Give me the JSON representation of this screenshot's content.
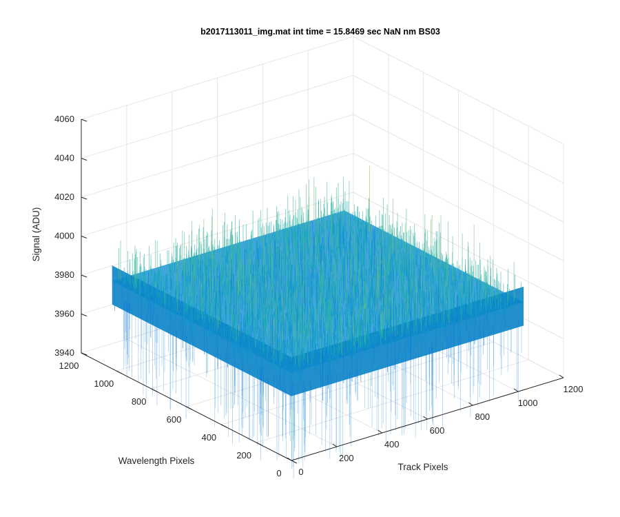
{
  "chart_data": {
    "type": "surface",
    "title": "b2017113011_img.mat int time = 15.8469 sec  NaN nm BS03",
    "xlabel": "Track Pixels",
    "ylabel": "Wavelength Pixels",
    "zlabel": "Signal (ADU)",
    "xlim": [
      0,
      1200
    ],
    "ylim": [
      0,
      1200
    ],
    "zlim": [
      3940,
      4060
    ],
    "x_ticks": [
      "0",
      "200",
      "400",
      "600",
      "800",
      "1000",
      "1200"
    ],
    "y_ticks": [
      "0",
      "200",
      "400",
      "600",
      "800",
      "1000",
      "1200"
    ],
    "z_ticks": [
      "3940",
      "3960",
      "3980",
      "4000",
      "4020",
      "4040",
      "4060"
    ],
    "grid": true,
    "surface": {
      "x_range": [
        0,
        1024
      ],
      "y_range": [
        0,
        1024
      ],
      "mean_signal": 3985,
      "min_signal": 3955,
      "max_signal": 4035,
      "colormap": "parula"
    }
  }
}
